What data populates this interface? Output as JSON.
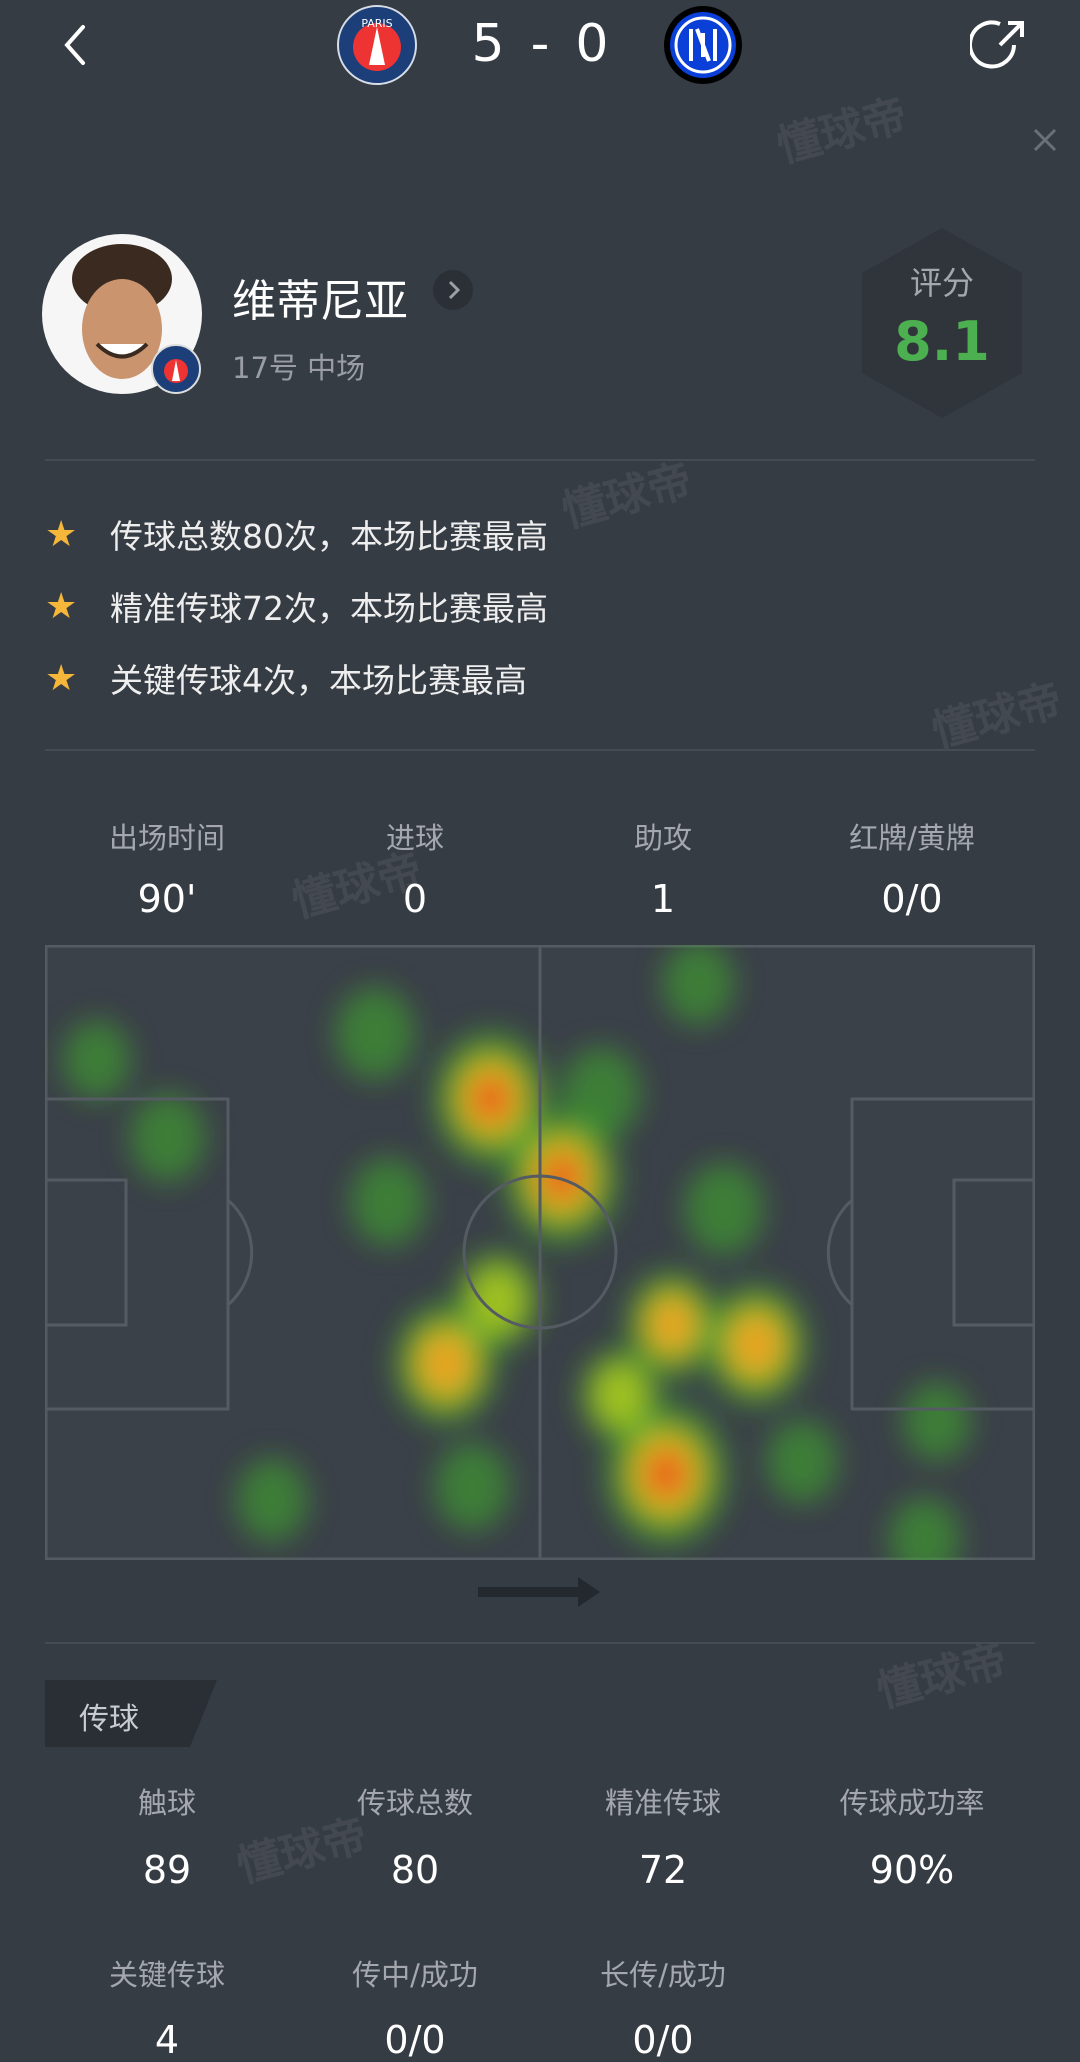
{
  "header": {
    "home_score": "5",
    "separator": "-",
    "away_score": "0",
    "home_team_logo": "PARIS",
    "away_team_logo": "INTER"
  },
  "player": {
    "name": "维蒂尼亚",
    "info": "17号 中场",
    "rating_label": "评分",
    "rating": "8.1",
    "rating_color": "#4caf50"
  },
  "highlights": [
    {
      "icon": "star-icon",
      "text": "传球总数80次，本场比赛最高"
    },
    {
      "icon": "star-icon",
      "text": "精准传球72次，本场比赛最高"
    },
    {
      "icon": "star-icon",
      "text": "关键传球4次，本场比赛最高"
    }
  ],
  "summary": [
    {
      "label": "出场时间",
      "value": "90'"
    },
    {
      "label": "进球",
      "value": "0"
    },
    {
      "label": "助攻",
      "value": "1"
    },
    {
      "label": "红牌/黄牌",
      "value": "0/0"
    }
  ],
  "heatmap": {
    "pitch_length_m": 105,
    "pitch_width_m": 68,
    "attack_direction": "right",
    "points": [
      {
        "x": 47.3,
        "y": 17.0,
        "intensity": 0.9
      },
      {
        "x": 54.8,
        "y": 25.7,
        "intensity": 0.9
      },
      {
        "x": 42.5,
        "y": 46.3,
        "intensity": 0.75
      },
      {
        "x": 65.9,
        "y": 58.5,
        "intensity": 1.0
      },
      {
        "x": 75.4,
        "y": 44.2,
        "intensity": 0.75
      },
      {
        "x": 66.5,
        "y": 42.0,
        "intensity": 0.6
      },
      {
        "x": 72.0,
        "y": 29.2,
        "intensity": 0.4
      },
      {
        "x": 59.0,
        "y": 16.4,
        "intensity": 0.4
      },
      {
        "x": 13.0,
        "y": 21.3,
        "intensity": 0.35
      },
      {
        "x": 35.0,
        "y": 9.8,
        "intensity": 0.4
      },
      {
        "x": 48.0,
        "y": 39.3,
        "intensity": 0.5
      },
      {
        "x": 24.1,
        "y": 61.4,
        "intensity": 0.3
      },
      {
        "x": 45.3,
        "y": 59.9,
        "intensity": 0.35
      },
      {
        "x": 93.3,
        "y": 65.7,
        "intensity": 0.3
      },
      {
        "x": 94.6,
        "y": 52.7,
        "intensity": 0.25
      },
      {
        "x": 80.3,
        "y": 57.1,
        "intensity": 0.3
      },
      {
        "x": 69.3,
        "y": 4.2,
        "intensity": 0.3
      },
      {
        "x": 5.5,
        "y": 12.7,
        "intensity": 0.25
      },
      {
        "x": 36.4,
        "y": 28.4,
        "intensity": 0.35
      },
      {
        "x": 61.0,
        "y": 49.8,
        "intensity": 0.45
      }
    ]
  },
  "passing": {
    "section_title": "传球",
    "row1": [
      {
        "label": "触球",
        "value": "89"
      },
      {
        "label": "传球总数",
        "value": "80"
      },
      {
        "label": "精准传球",
        "value": "72"
      },
      {
        "label": "传球成功率",
        "value": "90%"
      }
    ],
    "row2": [
      {
        "label": "关键传球",
        "value": "4"
      },
      {
        "label": "传中/成功",
        "value": "0/0"
      },
      {
        "label": "长传/成功",
        "value": "0/0"
      }
    ]
  },
  "watermark": "懂球帝"
}
